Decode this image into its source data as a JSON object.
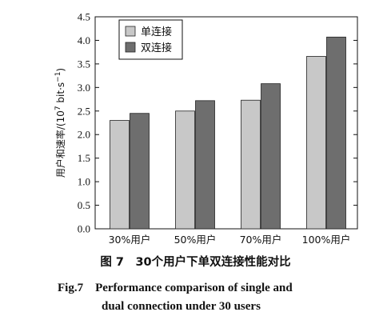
{
  "chart_data": {
    "type": "bar",
    "categories": [
      "30%用户",
      "50%用户",
      "70%用户",
      "100%用户"
    ],
    "series": [
      {
        "name": "单连接",
        "values": [
          2.3,
          2.5,
          2.73,
          3.66
        ],
        "color": "#c8c8c8"
      },
      {
        "name": "双连接",
        "values": [
          2.45,
          2.72,
          3.08,
          4.07
        ],
        "color": "#6e6e6e"
      }
    ],
    "ylabel_main": "用户和速率/(10",
    "ylabel_exp": "7",
    "ylabel_unit": " bit·s",
    "ylabel_unit_exp": "−1",
    "ylabel_close": ")",
    "ylim": [
      0,
      4.5
    ],
    "yticks": [
      "0.0",
      "0.5",
      "1.0",
      "1.5",
      "2.0",
      "2.5",
      "3.0",
      "3.5",
      "4.0",
      "4.5"
    ],
    "legend_position": "top-left",
    "grid": false
  },
  "caption": {
    "zh": "图 7　30个用户下单双连接性能对比",
    "en_line1": "Fig.7　Performance comparison of single and",
    "en_line2": "dual connection under 30 users"
  }
}
